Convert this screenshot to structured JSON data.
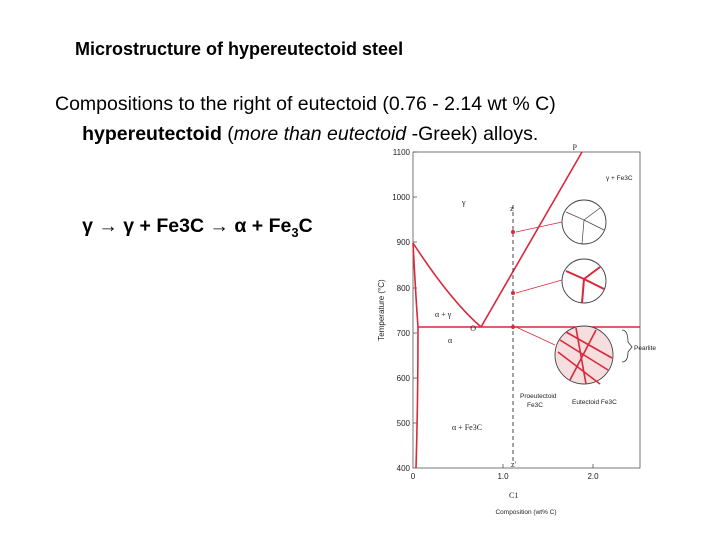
{
  "title": "Microstructure of hypereutectoid steel",
  "body": {
    "line1": "Compositions to the right of eutectoid (0.76 - 2.14 wt % C)",
    "line2": [
      "hypereutectoid",
      " (",
      "more than eutectoid",
      " -Greek) alloys."
    ],
    "reaction": [
      "γ → γ + Fe3C → α + Fe",
      "3",
      "C"
    ]
  },
  "diagram": {
    "y_axis_label": "Temperature (°C)",
    "x_axis_label": "Composition (wt% C)",
    "y_ticks": [
      "1100",
      "1000",
      "900",
      "800",
      "700",
      "600",
      "500",
      "400"
    ],
    "x_ticks": [
      "0",
      "1.0",
      "2.0"
    ],
    "labels": {
      "gamma": "γ",
      "alpha_gamma": "α + γ",
      "alpha": "α",
      "alpha_fe3c": "α + Fe3C",
      "gamma_fe3c": "γ + Fe3C",
      "o": "O",
      "p": "P",
      "z": "z",
      "z_prime": "z'",
      "c1": "C1",
      "pearlite": "Pearlite",
      "proeutectoid": "Proeutectoid",
      "proeutectoid_fe3c": "Fe3C",
      "eutectoid_fe3c": "Eutectoid Fe3C"
    }
  }
}
